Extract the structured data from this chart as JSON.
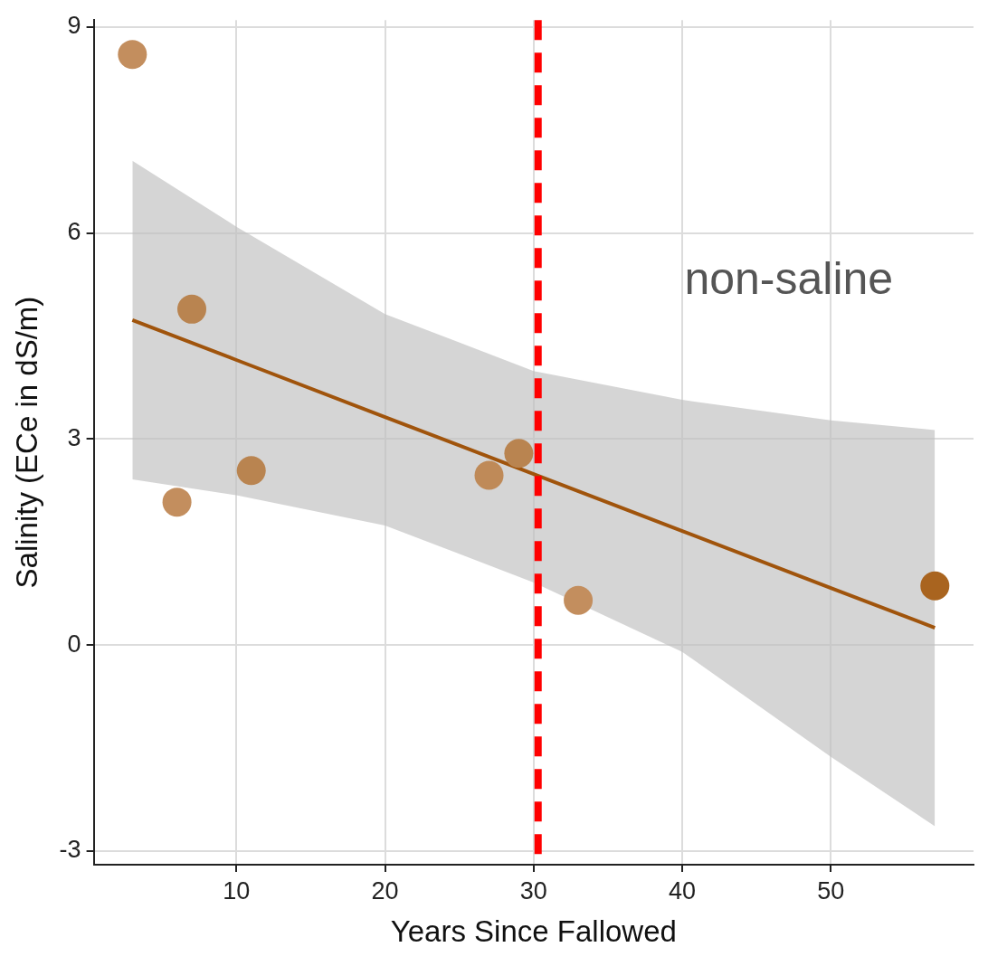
{
  "chart_data": {
    "type": "scatter",
    "xlabel": "Years Since Fallowed",
    "ylabel": "Salinity (ECe in dS/m)",
    "xlim": [
      0.4,
      59.6
    ],
    "ylim": [
      -3.2,
      9.1
    ],
    "xticks": [
      10,
      20,
      30,
      40,
      50
    ],
    "yticks": [
      -3,
      0,
      3,
      6,
      9
    ],
    "grid": true,
    "legend": false,
    "series": [
      {
        "type": "scatter",
        "marker": "circle",
        "x": [
          3,
          6,
          7,
          11,
          27,
          29,
          33,
          57
        ],
        "values": [
          8.6,
          2.08,
          4.89,
          2.54,
          2.47,
          2.79,
          0.65,
          0.86
        ],
        "colors": [
          "#c38e5e",
          "#c38e5e",
          "#b98450",
          "#b98450",
          "#bf8a58",
          "#b98450",
          "#c38e5e",
          "#a9641f"
        ]
      },
      {
        "type": "line",
        "marker": "none",
        "color": "#a0540c",
        "x": [
          3,
          10,
          20,
          30,
          40,
          50,
          57
        ],
        "values": [
          4.73,
          4.15,
          3.32,
          2.49,
          1.66,
          0.83,
          0.25
        ],
        "lower": [
          2.41,
          2.18,
          1.74,
          0.91,
          -0.1,
          -1.63,
          -2.64
        ],
        "upper": [
          7.05,
          6.09,
          4.82,
          3.99,
          3.57,
          3.27,
          3.13
        ]
      }
    ],
    "ref_lines": [
      {
        "axis": "x",
        "value": 30.3,
        "color": "#ff0000",
        "line_style": "dashed"
      }
    ],
    "annotations": [
      "non-saline"
    ]
  }
}
